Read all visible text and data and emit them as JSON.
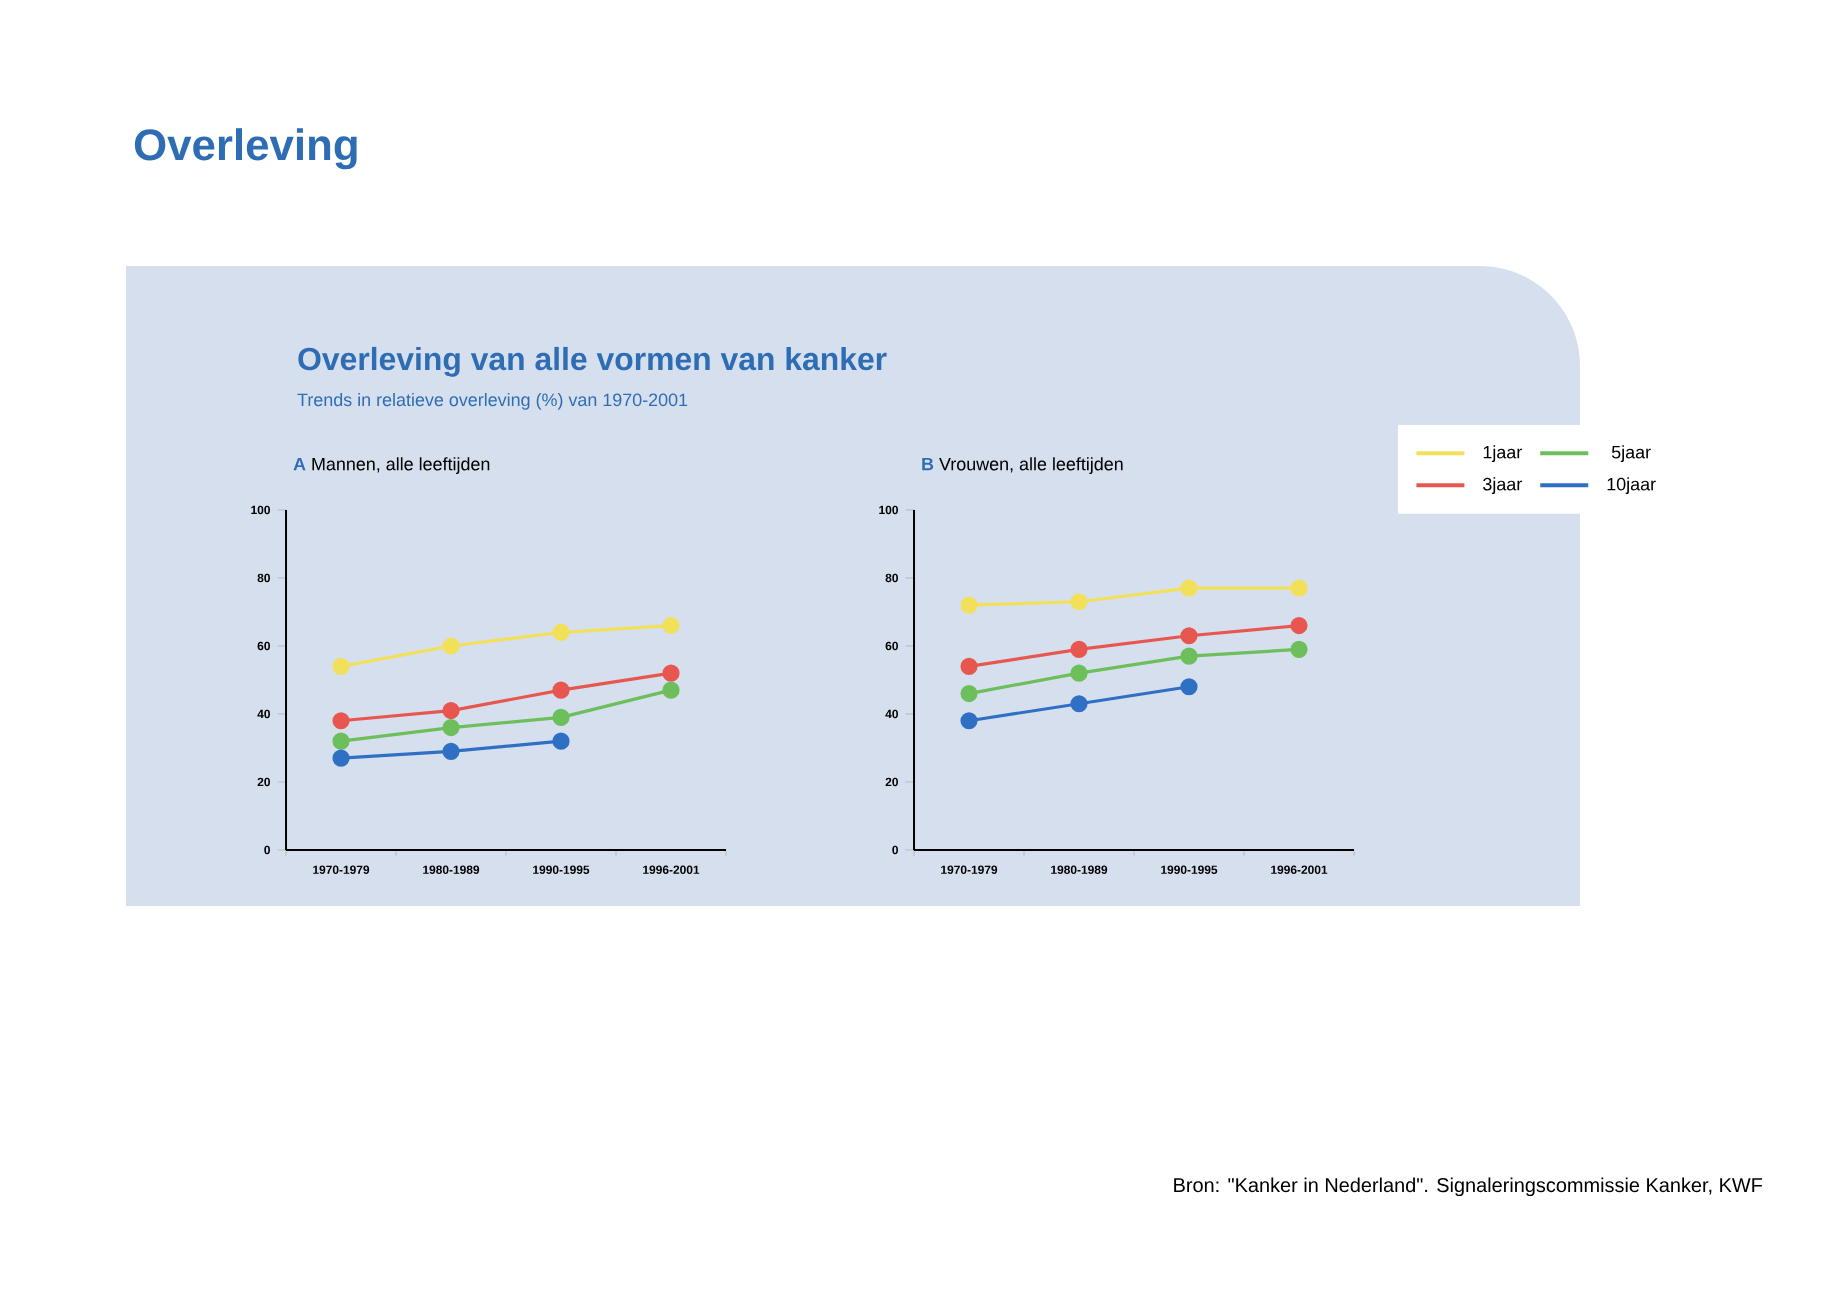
{
  "chart_data": [
    {
      "type": "other",
      "title": "Overleving van alle vormen van kanker",
      "subtitle": "Trends in relatieve overleving (%) van 1970-2001",
      "annotations": [
        "Overleving",
        "Bron: \"Kanker in Nederland\". Signaleringscommissie Kanker, KWF"
      ]
    },
    {
      "type": "line",
      "title": "Mannen, alle leeftijden",
      "annotations": [
        "A"
      ],
      "categories": [
        "1970-1979",
        "1980-1989",
        "1990-1995",
        "1996-2001"
      ],
      "ylim": [
        0,
        100
      ],
      "yticks": [
        0,
        20,
        40,
        60,
        80,
        100
      ],
      "marker": "circle",
      "grid": false,
      "legend": false,
      "series": [
        {
          "color": "#f3e05a",
          "values": [
            54,
            60,
            64,
            66
          ]
        },
        {
          "color": "#e8574f",
          "values": [
            38,
            41,
            47,
            52
          ]
        },
        {
          "color": "#6cbf5a",
          "values": [
            32,
            36,
            39,
            47
          ]
        },
        {
          "color": "#2f6fc4",
          "values": [
            27,
            29,
            32,
            null
          ]
        }
      ]
    },
    {
      "type": "line",
      "title": "Vrouwen, alle leeftijden",
      "annotations": [
        "B"
      ],
      "categories": [
        "1970-1979",
        "1980-1989",
        "1990-1995",
        "1996-2001"
      ],
      "ylim": [
        0,
        100
      ],
      "yticks": [
        0,
        20,
        40,
        60,
        80,
        100
      ],
      "marker": "circle",
      "grid": false,
      "legend": "right",
      "series": [
        {
          "name": "1jaar",
          "color": "#f3e05a",
          "values": [
            72,
            73,
            77,
            77
          ]
        },
        {
          "name": "3jaar",
          "color": "#e8574f",
          "values": [
            54,
            59,
            63,
            66
          ]
        },
        {
          "name": "5jaar",
          "color": "#6cbf5a",
          "values": [
            46,
            52,
            57,
            59
          ]
        },
        {
          "name": "10jaar",
          "color": "#2f6fc4",
          "values": [
            38,
            43,
            48,
            null
          ]
        }
      ]
    }
  ]
}
